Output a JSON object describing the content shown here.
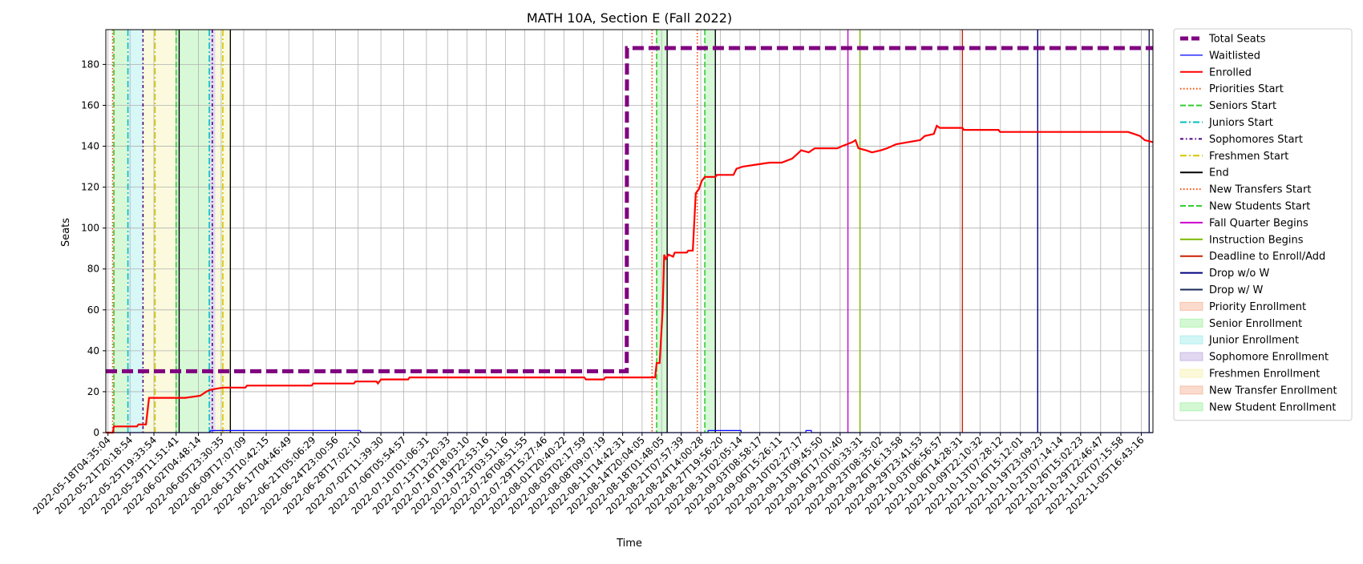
{
  "chart_data": {
    "type": "line",
    "title": "MATH 10A, Section E (Fall 2022)",
    "xlabel": "Time",
    "ylabel": "Seats",
    "xlim": [
      "2022-05-17T19:56:00",
      "2022-11-07T15:00:00"
    ],
    "ylim": [
      0,
      197
    ],
    "yticks": [
      0,
      20,
      40,
      60,
      80,
      100,
      120,
      140,
      160,
      180
    ],
    "xticks": [
      "2022-05-18T04:35:04",
      "2022-05-21T20:18:54",
      "2022-05-25T19:33:54",
      "2022-05-29T11:51:41",
      "2022-06-02T04:48:14",
      "2022-06-05T23:30:35",
      "2022-06-09T17:07:09",
      "2022-06-13T10:42:15",
      "2022-06-17T04:46:49",
      "2022-06-21T05:06:29",
      "2022-06-24T23:00:56",
      "2022-06-28T17:02:10",
      "2022-07-02T11:39:30",
      "2022-07-06T05:54:57",
      "2022-07-10T01:06:31",
      "2022-07-13T13:20:33",
      "2022-07-16T18:03:10",
      "2022-07-19T22:53:16",
      "2022-07-23T03:51:16",
      "2022-07-26T08:51:55",
      "2022-07-29T15:27:46",
      "2022-08-01T20:40:22",
      "2022-08-05T02:17:59",
      "2022-08-08T09:07:19",
      "2022-08-11T14:42:31",
      "2022-08-14T20:04:05",
      "2022-08-18T01:48:05",
      "2022-08-21T07:57:39",
      "2022-08-24T14:00:28",
      "2022-08-27T19:56:20",
      "2022-08-31T02:05:14",
      "2022-09-03T08:58:17",
      "2022-09-06T15:26:11",
      "2022-09-10T02:27:17",
      "2022-09-13T09:45:50",
      "2022-09-16T17:01:40",
      "2022-09-20T00:33:31",
      "2022-09-23T08:35:02",
      "2022-09-26T16:13:58",
      "2022-09-29T23:41:53",
      "2022-10-03T06:56:57",
      "2022-10-06T14:28:31",
      "2022-10-09T22:10:32",
      "2022-10-13T07:28:12",
      "2022-10-16T15:12:01",
      "2022-10-19T23:09:23",
      "2022-10-23T07:14:14",
      "2022-10-26T15:02:23",
      "2022-10-29T22:46:47",
      "2022-11-02T07:15:58",
      "2022-11-05T16:43:16"
    ],
    "grid": true,
    "legend_position": "outside-right",
    "series": [
      {
        "name": "Total Seats",
        "color": "#800080",
        "style": "dashed-thick",
        "points": [
          [
            "2022-05-17T19:56:00",
            30
          ],
          [
            "2022-08-12T07:00:00",
            30
          ],
          [
            "2022-08-12T08:00:00",
            188
          ],
          [
            "2022-11-07T15:00:00",
            188
          ]
        ]
      },
      {
        "name": "Waitlisted",
        "color": "#0000ff",
        "style": "solid-thin",
        "points": [
          [
            "2022-05-17T19:56:00",
            0
          ],
          [
            "2022-06-04T00:00:00",
            0
          ],
          [
            "2022-06-04T06:00:00",
            1
          ],
          [
            "2022-06-29T00:00:00",
            1
          ],
          [
            "2022-06-29T06:00:00",
            0
          ],
          [
            "2022-08-25T18:00:00",
            0
          ],
          [
            "2022-08-25T19:00:00",
            1
          ],
          [
            "2022-08-31T06:00:00",
            1
          ],
          [
            "2022-08-31T07:00:00",
            0
          ],
          [
            "2022-09-11T00:00:00",
            0
          ],
          [
            "2022-09-11T01:00:00",
            1
          ],
          [
            "2022-09-11T22:00:00",
            1
          ],
          [
            "2022-09-11T23:00:00",
            0
          ],
          [
            "2022-11-07T15:00:00",
            0
          ]
        ]
      },
      {
        "name": "Enrolled",
        "color": "#ff0000",
        "style": "solid",
        "points": [
          [
            "2022-05-17T19:56:00",
            0
          ],
          [
            "2022-05-19T00:00:00",
            0
          ],
          [
            "2022-05-19T04:00:00",
            3
          ],
          [
            "2022-05-23T00:00:00",
            3
          ],
          [
            "2022-05-23T06:00:00",
            4
          ],
          [
            "2022-05-24T12:00:00",
            4
          ],
          [
            "2022-05-25T00:00:00",
            17
          ],
          [
            "2022-05-31T00:00:00",
            17
          ],
          [
            "2022-06-02T12:00:00",
            18
          ],
          [
            "2022-06-03T12:00:00",
            20
          ],
          [
            "2022-06-04T06:00:00",
            21
          ],
          [
            "2022-06-06T06:00:00",
            22
          ],
          [
            "2022-06-10T00:00:00",
            22
          ],
          [
            "2022-06-10T06:00:00",
            23
          ],
          [
            "2022-06-21T00:00:00",
            23
          ],
          [
            "2022-06-21T06:00:00",
            24
          ],
          [
            "2022-06-28T00:00:00",
            24
          ],
          [
            "2022-06-28T06:00:00",
            25
          ],
          [
            "2022-07-01T18:00:00",
            25
          ],
          [
            "2022-07-02T00:00:00",
            24
          ],
          [
            "2022-07-02T12:00:00",
            26
          ],
          [
            "2022-07-07T00:00:00",
            26
          ],
          [
            "2022-07-07T06:00:00",
            27
          ],
          [
            "2022-08-05T06:00:00",
            27
          ],
          [
            "2022-08-05T12:00:00",
            26
          ],
          [
            "2022-08-08T12:00:00",
            26
          ],
          [
            "2022-08-08T18:00:00",
            27
          ],
          [
            "2022-08-17T00:00:00",
            27
          ],
          [
            "2022-08-17T06:00:00",
            34
          ],
          [
            "2022-08-17T18:00:00",
            34
          ],
          [
            "2022-08-18T06:00:00",
            60
          ],
          [
            "2022-08-18T12:00:00",
            87
          ],
          [
            "2022-08-18T18:00:00",
            85
          ],
          [
            "2022-08-19T06:00:00",
            87
          ],
          [
            "2022-08-20T00:00:00",
            86
          ],
          [
            "2022-08-20T06:00:00",
            88
          ],
          [
            "2022-08-22T06:00:00",
            88
          ],
          [
            "2022-08-22T12:00:00",
            89
          ],
          [
            "2022-08-23T06:00:00",
            89
          ],
          [
            "2022-08-23T18:00:00",
            117
          ],
          [
            "2022-08-24T06:00:00",
            119
          ],
          [
            "2022-08-24T18:00:00",
            123
          ],
          [
            "2022-08-25T06:00:00",
            125
          ],
          [
            "2022-08-27T00:00:00",
            125
          ],
          [
            "2022-08-27T06:00:00",
            126
          ],
          [
            "2022-08-30T00:00:00",
            126
          ],
          [
            "2022-08-30T12:00:00",
            129
          ],
          [
            "2022-08-31T12:00:00",
            130
          ],
          [
            "2022-09-02T18:00:00",
            131
          ],
          [
            "2022-09-05T00:00:00",
            132
          ],
          [
            "2022-09-07T00:00:00",
            132
          ],
          [
            "2022-09-08T18:00:00",
            134
          ],
          [
            "2022-09-09T12:00:00",
            136
          ],
          [
            "2022-09-10T06:00:00",
            138
          ],
          [
            "2022-09-11T12:00:00",
            137
          ],
          [
            "2022-09-12T12:00:00",
            139
          ],
          [
            "2022-09-16T06:00:00",
            139
          ],
          [
            "2022-09-17T00:00:00",
            140
          ],
          [
            "2022-09-18T18:00:00",
            142
          ],
          [
            "2022-09-19T06:00:00",
            143
          ],
          [
            "2022-09-19T18:00:00",
            139
          ],
          [
            "2022-09-21T00:00:00",
            138
          ],
          [
            "2022-09-22T00:00:00",
            137
          ],
          [
            "2022-09-23T12:00:00",
            138
          ],
          [
            "2022-09-24T12:00:00",
            139
          ],
          [
            "2022-09-26T00:00:00",
            141
          ],
          [
            "2022-09-28T00:00:00",
            142
          ],
          [
            "2022-09-30T00:00:00",
            143
          ],
          [
            "2022-09-30T18:00:00",
            145
          ],
          [
            "2022-10-02T06:00:00",
            146
          ],
          [
            "2022-10-02T18:00:00",
            150
          ],
          [
            "2022-10-03T06:00:00",
            149
          ],
          [
            "2022-10-07T00:00:00",
            149
          ],
          [
            "2022-10-07T06:00:00",
            148
          ],
          [
            "2022-10-13T00:00:00",
            148
          ],
          [
            "2022-10-13T06:00:00",
            147
          ],
          [
            "2022-11-03T12:00:00",
            147
          ],
          [
            "2022-11-04T12:00:00",
            146
          ],
          [
            "2022-11-05T12:00:00",
            145
          ],
          [
            "2022-11-06T06:00:00",
            143
          ],
          [
            "2022-11-07T15:00:00",
            142
          ]
        ]
      }
    ],
    "vertical_lines": [
      {
        "name": "Priorities Start",
        "color": "#ff4500",
        "style": "dotted",
        "x": [
          "2022-05-18T23:00:00",
          "2022-08-16T12:00:00",
          "2022-08-24T00:00:00"
        ]
      },
      {
        "name": "Seniors Start",
        "color": "#32cd32",
        "style": "dashed",
        "x": [
          "2022-05-19T04:00:00",
          "2022-05-29T12:00:00",
          "2022-08-17T06:00:00",
          "2022-08-25T06:00:00"
        ]
      },
      {
        "name": "Juniors Start",
        "color": "#00bfbf",
        "style": "dashdot",
        "x": [
          "2022-05-21T12:00:00",
          "2022-06-04T00:00:00"
        ]
      },
      {
        "name": "Sophomores Start",
        "color": "#4b0082",
        "style": "dashdot-dense",
        "x": [
          "2022-05-24T00:00:00",
          "2022-06-04T12:00:00"
        ]
      },
      {
        "name": "Freshmen Start",
        "color": "#d4c600",
        "style": "dashdot",
        "x": [
          "2022-05-26T00:00:00",
          "2022-06-06T06:00:00"
        ]
      },
      {
        "name": "End",
        "color": "#000000",
        "style": "solid",
        "x": [
          "2022-05-30T00:00:00",
          "2022-06-07T12:00:00",
          "2022-08-19T00:00:00",
          "2022-08-27T00:00:00"
        ]
      },
      {
        "name": "New Transfers Start",
        "color": "#ff4500",
        "style": "dotted",
        "x": []
      },
      {
        "name": "New Students Start",
        "color": "#32cd32",
        "style": "dashed",
        "x": []
      },
      {
        "name": "Fall Quarter Begins",
        "color": "#cc00cc",
        "style": "solid",
        "x": [
          "2022-09-18T00:00:00"
        ]
      },
      {
        "name": "Instruction Begins",
        "color": "#7cb800",
        "style": "solid",
        "x": [
          "2022-09-20T00:00:00"
        ]
      },
      {
        "name": "Deadline to Enroll/Add",
        "color": "#cc2200",
        "style": "solid",
        "x": [
          "2022-10-07T00:00:00"
        ]
      },
      {
        "name": "Drop w/o W",
        "color": "#000080",
        "style": "solid",
        "x": [
          "2022-10-19T12:00:00"
        ]
      },
      {
        "name": "Drop w/ W",
        "color": "#1a2a5a",
        "style": "solid",
        "x": [
          "2022-11-07T00:00:00"
        ]
      }
    ],
    "spans": [
      {
        "name": "Priority Enrollment",
        "color": "#f4a582",
        "x": []
      },
      {
        "name": "Senior Enrollment",
        "color": "#90ee90",
        "x": [
          [
            "2022-05-19T04:00:00",
            "2022-05-21T12:00:00"
          ],
          [
            "2022-05-29T12:00:00",
            "2022-06-04T00:00:00"
          ]
        ]
      },
      {
        "name": "Junior Enrollment",
        "color": "#8fe8e8",
        "x": [
          [
            "2022-05-21T12:00:00",
            "2022-05-24T00:00:00"
          ]
        ]
      },
      {
        "name": "Sophomore Enrollment",
        "color": "#b39ddb",
        "x": [
          [
            "2022-06-04T00:00:00",
            "2022-06-05T00:00:00"
          ]
        ]
      },
      {
        "name": "Freshmen Enrollment",
        "color": "#f4f0a0",
        "x": [
          [
            "2022-05-24T00:00:00",
            "2022-05-29T12:00:00"
          ],
          [
            "2022-06-05T00:00:00",
            "2022-06-07T12:00:00"
          ]
        ]
      },
      {
        "name": "New Transfer Enrollment",
        "color": "#f4a582",
        "x": []
      },
      {
        "name": "New Student Enrollment",
        "color": "#90ee90",
        "x": [
          [
            "2022-08-17T06:00:00",
            "2022-08-19T00:00:00"
          ],
          [
            "2022-08-25T06:00:00",
            "2022-08-27T00:00:00"
          ]
        ]
      }
    ],
    "legend": [
      {
        "label": "Total Seats",
        "kind": "line",
        "color": "#800080",
        "style": "dashed-thick"
      },
      {
        "label": "Waitlisted",
        "kind": "line",
        "color": "#0000ff",
        "style": "solid-thin"
      },
      {
        "label": "Enrolled",
        "kind": "line",
        "color": "#ff0000",
        "style": "solid"
      },
      {
        "label": "Priorities Start",
        "kind": "line",
        "color": "#ff4500",
        "style": "dotted"
      },
      {
        "label": "Seniors Start",
        "kind": "line",
        "color": "#32cd32",
        "style": "dashed"
      },
      {
        "label": "Juniors Start",
        "kind": "line",
        "color": "#00bfbf",
        "style": "dashdot"
      },
      {
        "label": "Sophomores Start",
        "kind": "line",
        "color": "#4b0082",
        "style": "dashdot-dense"
      },
      {
        "label": "Freshmen Start",
        "kind": "line",
        "color": "#d4c600",
        "style": "dashdot"
      },
      {
        "label": "End",
        "kind": "line",
        "color": "#000000",
        "style": "solid"
      },
      {
        "label": "New Transfers Start",
        "kind": "line",
        "color": "#ff4500",
        "style": "dotted"
      },
      {
        "label": "New Students Start",
        "kind": "line",
        "color": "#32cd32",
        "style": "dashed"
      },
      {
        "label": "Fall Quarter Begins",
        "kind": "line",
        "color": "#cc00cc",
        "style": "solid"
      },
      {
        "label": "Instruction Begins",
        "kind": "line",
        "color": "#7cb800",
        "style": "solid"
      },
      {
        "label": "Deadline to Enroll/Add",
        "kind": "line",
        "color": "#cc2200",
        "style": "solid"
      },
      {
        "label": "Drop w/o W",
        "kind": "line",
        "color": "#000080",
        "style": "solid"
      },
      {
        "label": "Drop w/ W",
        "kind": "line",
        "color": "#1a2a5a",
        "style": "solid"
      },
      {
        "label": "Priority Enrollment",
        "kind": "patch",
        "color": "#f4a582"
      },
      {
        "label": "Senior Enrollment",
        "kind": "patch",
        "color": "#90ee90"
      },
      {
        "label": "Junior Enrollment",
        "kind": "patch",
        "color": "#8fe8e8"
      },
      {
        "label": "Sophomore Enrollment",
        "kind": "patch",
        "color": "#b39ddb"
      },
      {
        "label": "Freshmen Enrollment",
        "kind": "patch",
        "color": "#f4f0a0"
      },
      {
        "label": "New Transfer Enrollment",
        "kind": "patch",
        "color": "#f4a582"
      },
      {
        "label": "New Student Enrollment",
        "kind": "patch",
        "color": "#90ee90"
      }
    ]
  }
}
